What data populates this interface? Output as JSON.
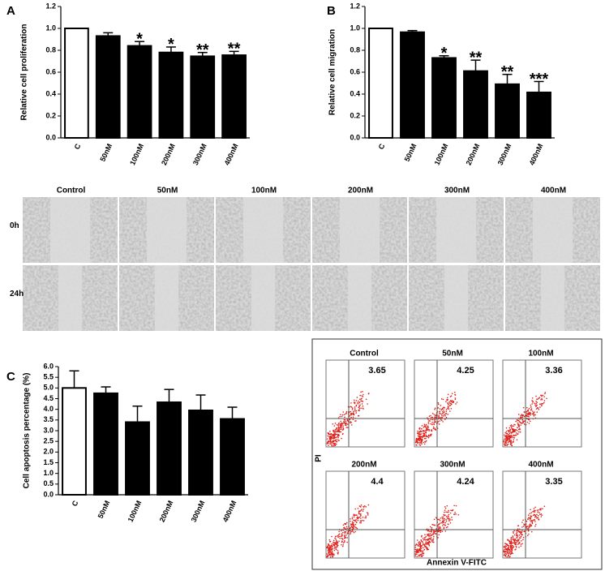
{
  "chart_data": [
    {
      "type": "bar",
      "panel_label": "A",
      "ylabel": "Relative cell proliferation",
      "categories": [
        "C",
        "50nM",
        "100nM",
        "200nM",
        "300nM",
        "400nM"
      ],
      "values": [
        1.0,
        0.93,
        0.84,
        0.78,
        0.745,
        0.755
      ],
      "errors": [
        0,
        0.03,
        0.04,
        0.05,
        0.035,
        0.035
      ],
      "significance": [
        null,
        null,
        "*",
        "*",
        "**",
        "**"
      ],
      "colors": [
        "#ffffff",
        "#000000",
        "#000000",
        "#000000",
        "#000000",
        "#000000"
      ],
      "ylim": [
        0,
        1.2
      ],
      "yticks": [
        {
          "value": 0,
          "label": "0.0"
        },
        0.2,
        0.4,
        0.6,
        0.8,
        {
          "value": 1,
          "label": "1.0"
        },
        1.2
      ]
    },
    {
      "type": "bar",
      "panel_label": "B",
      "ylabel": "Relative cell migration",
      "categories": [
        "C",
        "50nM",
        "100nM",
        "200nM",
        "300nM",
        "400nM"
      ],
      "values": [
        1.0,
        0.965,
        0.73,
        0.61,
        0.49,
        0.415
      ],
      "errors": [
        0,
        0.015,
        0.02,
        0.1,
        0.09,
        0.1
      ],
      "significance": [
        null,
        null,
        "*",
        "**",
        "**",
        "***"
      ],
      "colors": [
        "#ffffff",
        "#000000",
        "#000000",
        "#000000",
        "#000000",
        "#000000"
      ],
      "ylim": [
        0,
        1.2
      ],
      "yticks": [
        {
          "value": 0,
          "label": "0.0"
        },
        0.2,
        0.4,
        0.6,
        0.8,
        {
          "value": 1,
          "label": "1.0"
        },
        1.2
      ]
    },
    {
      "type": "bar",
      "panel_label": "C",
      "ylabel": "Cell apoptosis percentage (%)",
      "categories": [
        "C",
        "50nM",
        "100nM",
        "200nM",
        "300nM",
        "400nM"
      ],
      "values": [
        5.0,
        4.75,
        3.4,
        4.33,
        3.95,
        3.55
      ],
      "errors": [
        0.8,
        0.3,
        0.75,
        0.6,
        0.72,
        0.55
      ],
      "significance": [
        null,
        null,
        null,
        null,
        null,
        null
      ],
      "colors": [
        "#ffffff",
        "#000000",
        "#000000",
        "#000000",
        "#000000",
        "#000000"
      ],
      "ylim": [
        0,
        6
      ],
      "yticks": [
        {
          "value": 0,
          "label": "0.0"
        },
        0.5,
        {
          "value": 1,
          "label": "1.0"
        },
        1.5,
        {
          "value": 2,
          "label": "2.0"
        },
        2.5,
        {
          "value": 3,
          "label": "3.0"
        },
        3.5,
        {
          "value": 4,
          "label": "4.0"
        },
        4.5,
        {
          "value": 5,
          "label": "5.0"
        },
        5.5,
        {
          "value": 6,
          "label": "6.0"
        }
      ]
    }
  ],
  "wound_healing": {
    "columns": [
      "Control",
      "50nM",
      "100nM",
      "200nM",
      "300nM",
      "400nM"
    ],
    "rows": [
      "0h",
      "24h"
    ]
  },
  "flow_cytometry": {
    "xlabel": "Annexin V-FITC",
    "ylabel": "PI",
    "panels": [
      {
        "label": "Control",
        "value": 3.65
      },
      {
        "label": "50nM",
        "value": 4.25
      },
      {
        "label": "100nM",
        "value": 3.36
      },
      {
        "label": "200nM",
        "value": 4.4
      },
      {
        "label": "300nM",
        "value": 4.24
      },
      {
        "label": "400nM",
        "value": 3.35
      }
    ]
  }
}
